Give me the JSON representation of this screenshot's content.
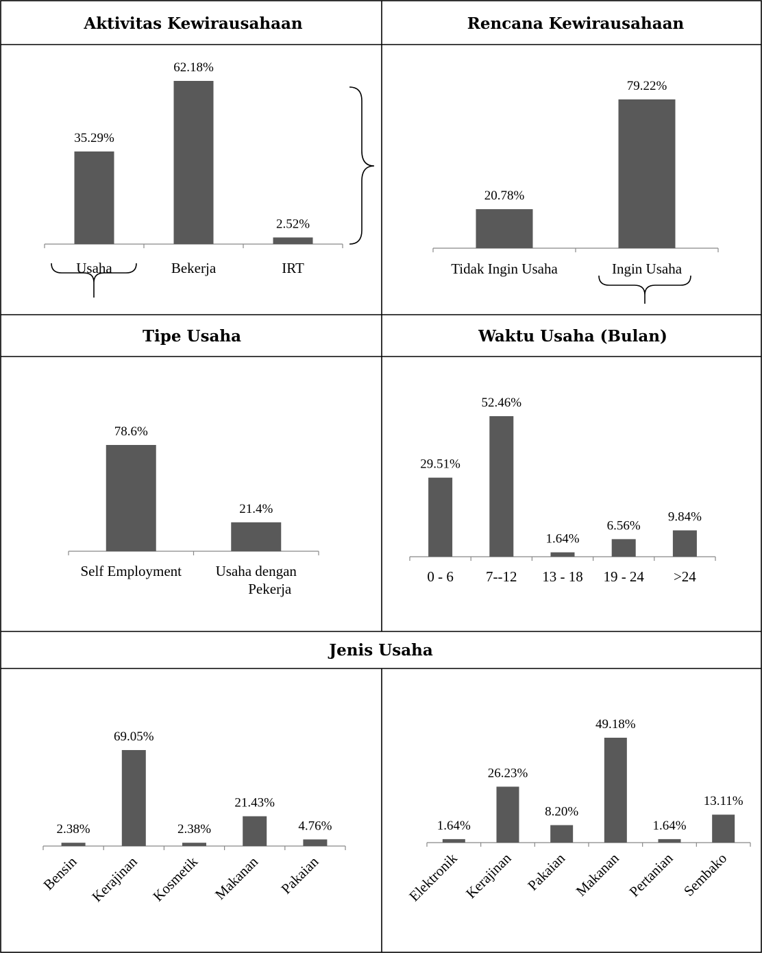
{
  "headers": {
    "aktivitas": "Aktivitas Kewirausahaan",
    "rencana": "Rencana Kewirausahaan",
    "tipe": "Tipe Usaha",
    "waktu": "Waktu Usaha (Bulan)",
    "jenis": "Jenis Usaha"
  },
  "chart_data": [
    {
      "id": "aktivitas",
      "type": "bar",
      "categories": [
        "Usaha",
        "Bekerja",
        "IRT"
      ],
      "values": [
        35.29,
        62.18,
        2.52
      ],
      "labels": [
        "35.29%",
        "62.18%",
        "2.52%"
      ],
      "ylim": [
        0,
        70
      ]
    },
    {
      "id": "rencana",
      "type": "bar",
      "categories": [
        "Tidak Ingin Usaha",
        "Ingin Usaha"
      ],
      "values": [
        20.78,
        79.22
      ],
      "labels": [
        "20.78%",
        "79.22%"
      ],
      "ylim": [
        0,
        100
      ]
    },
    {
      "id": "tipe",
      "type": "bar",
      "categories": [
        "Self Employment",
        "Usaha dengan Pekerja"
      ],
      "values": [
        78.6,
        21.4
      ],
      "labels": [
        "78.6%",
        "21.4%"
      ],
      "ylim": [
        0,
        100
      ]
    },
    {
      "id": "waktu",
      "type": "bar",
      "categories": [
        "0 - 6",
        "7--12",
        "13 - 18",
        "19 - 24",
        ">24"
      ],
      "values": [
        29.51,
        52.46,
        1.64,
        6.56,
        9.84
      ],
      "labels": [
        "29.51%",
        "52.46%",
        "1.64%",
        "6.56%",
        "9.84%"
      ],
      "ylim": [
        0,
        60
      ]
    },
    {
      "id": "jenis-left",
      "type": "bar",
      "categories": [
        "Bensin",
        "Kerajinan",
        "Kosmetik",
        "Makanan",
        "Pakaian"
      ],
      "values": [
        2.38,
        69.05,
        2.38,
        21.43,
        4.76
      ],
      "labels": [
        "2.38%",
        "69.05%",
        "2.38%",
        "21.43%",
        "4.76%"
      ],
      "ylim": [
        0,
        80
      ]
    },
    {
      "id": "jenis-right",
      "type": "bar",
      "categories": [
        "Elektronik",
        "Kerajinan",
        "Pakaian",
        "Makanan",
        "Pertanian",
        "Sembako"
      ],
      "values": [
        1.64,
        26.23,
        8.2,
        49.18,
        1.64,
        13.11
      ],
      "labels": [
        "1.64%",
        "26.23%",
        "8.20%",
        "49.18%",
        "1.64%",
        "13.11%"
      ],
      "ylim": [
        0,
        50
      ]
    }
  ]
}
